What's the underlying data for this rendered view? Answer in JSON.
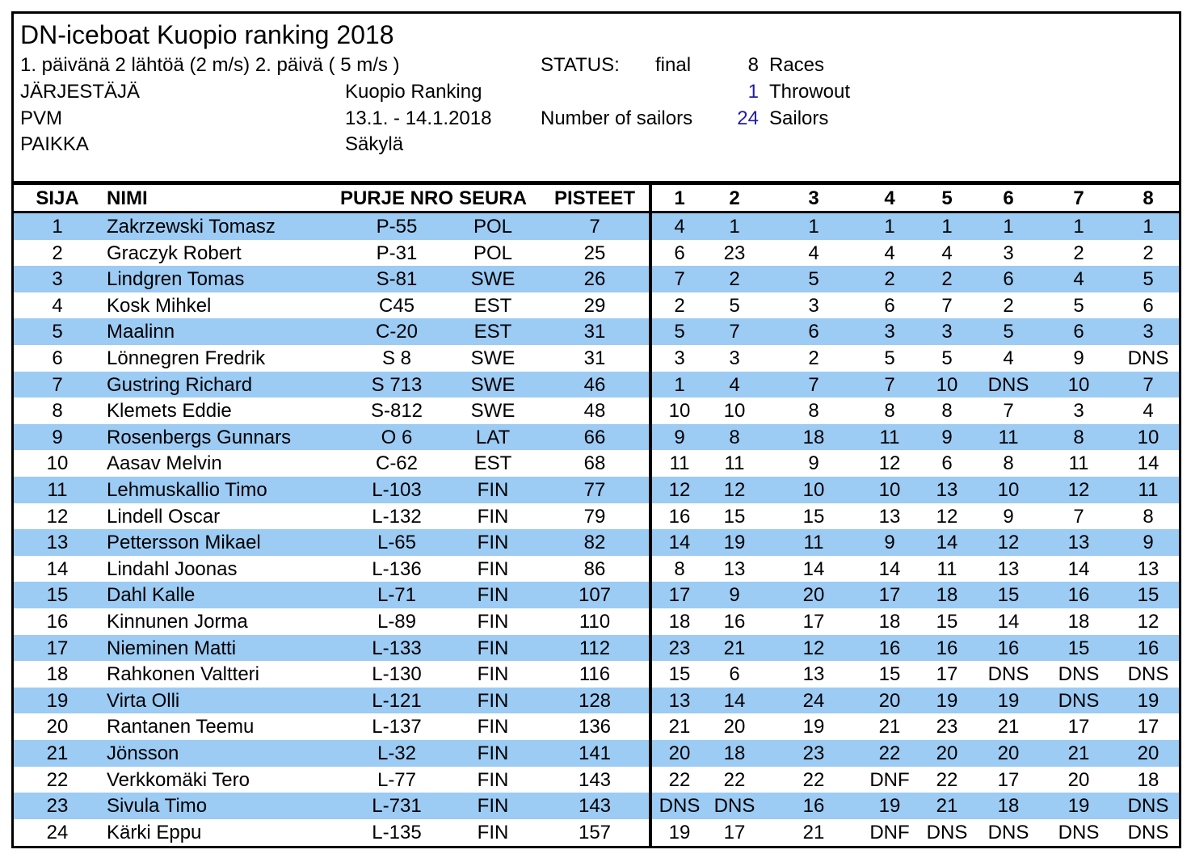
{
  "header": {
    "title": "DN-iceboat Kuopio ranking 2018",
    "subtitle": "1. päivänä 2 lähtöä (2 m/s) 2. päivä ( 5 m/s )",
    "status_label": "STATUS:",
    "status_value": "final",
    "races_count": "8",
    "races_label": "Races",
    "organizer_label": "JÄRJESTÄJÄ",
    "organizer_value": "Kuopio Ranking",
    "throwout_count": "1",
    "throwout_label": "Throwout",
    "date_label": "PVM",
    "date_value": "13.1. - 14.1.2018",
    "sailors_label": "Number of sailors",
    "sailors_count": "24",
    "sailors_unit": "Sailors",
    "place_label": "PAIKKA",
    "place_value": "Säkylä"
  },
  "columns": {
    "rank": "SIJA",
    "name": "NIMI",
    "sail": "PURJE NRO",
    "club": "SEURA",
    "points": "PISTEET",
    "races": [
      "1",
      "2",
      "3",
      "4",
      "5",
      "6",
      "7",
      "8"
    ]
  },
  "colors": {
    "row_shade": "#9ccbf4",
    "number_accent": "#1f1f9e"
  },
  "rows": [
    {
      "rank": "1",
      "name": "Zakrzewski Tomasz",
      "sail": "P-55",
      "club": "POL",
      "points": "7",
      "races": [
        "4",
        "1",
        "1",
        "1",
        "1",
        "1",
        "1",
        "1"
      ]
    },
    {
      "rank": "2",
      "name": "Graczyk Robert",
      "sail": "P-31",
      "club": "POL",
      "points": "25",
      "races": [
        "6",
        "23",
        "4",
        "4",
        "4",
        "3",
        "2",
        "2"
      ]
    },
    {
      "rank": "3",
      "name": "Lindgren Tomas",
      "sail": "S-81",
      "club": "SWE",
      "points": "26",
      "races": [
        "7",
        "2",
        "5",
        "2",
        "2",
        "6",
        "4",
        "5"
      ]
    },
    {
      "rank": "4",
      "name": "Kosk Mihkel",
      "sail": "C45",
      "club": "EST",
      "points": "29",
      "races": [
        "2",
        "5",
        "3",
        "6",
        "7",
        "2",
        "5",
        "6"
      ]
    },
    {
      "rank": "5",
      "name": "Maalinn",
      "sail": "C-20",
      "club": "EST",
      "points": "31",
      "races": [
        "5",
        "7",
        "6",
        "3",
        "3",
        "5",
        "6",
        "3"
      ]
    },
    {
      "rank": "6",
      "name": "Lönnegren Fredrik",
      "sail": "S 8",
      "club": "SWE",
      "points": "31",
      "races": [
        "3",
        "3",
        "2",
        "5",
        "5",
        "4",
        "9",
        "DNS"
      ]
    },
    {
      "rank": "7",
      "name": "Gustring Richard",
      "sail": "S 713",
      "club": "SWE",
      "points": "46",
      "races": [
        "1",
        "4",
        "7",
        "7",
        "10",
        "DNS",
        "10",
        "7"
      ]
    },
    {
      "rank": "8",
      "name": "Klemets Eddie",
      "sail": "S-812",
      "club": "SWE",
      "points": "48",
      "races": [
        "10",
        "10",
        "8",
        "8",
        "8",
        "7",
        "3",
        "4"
      ]
    },
    {
      "rank": "9",
      "name": "Rosenbergs Gunnars",
      "sail": "O 6",
      "club": "LAT",
      "points": "66",
      "races": [
        "9",
        "8",
        "18",
        "11",
        "9",
        "11",
        "8",
        "10"
      ]
    },
    {
      "rank": "10",
      "name": "Aasav Melvin",
      "sail": "C-62",
      "club": "EST",
      "points": "68",
      "races": [
        "11",
        "11",
        "9",
        "12",
        "6",
        "8",
        "11",
        "14"
      ]
    },
    {
      "rank": "11",
      "name": "Lehmuskallio Timo",
      "sail": "L-103",
      "club": "FIN",
      "points": "77",
      "races": [
        "12",
        "12",
        "10",
        "10",
        "13",
        "10",
        "12",
        "11"
      ]
    },
    {
      "rank": "12",
      "name": "Lindell Oscar",
      "sail": "L-132",
      "club": "FIN",
      "points": "79",
      "races": [
        "16",
        "15",
        "15",
        "13",
        "12",
        "9",
        "7",
        "8"
      ]
    },
    {
      "rank": "13",
      "name": "Pettersson Mikael",
      "sail": "L-65",
      "club": "FIN",
      "points": "82",
      "races": [
        "14",
        "19",
        "11",
        "9",
        "14",
        "12",
        "13",
        "9"
      ]
    },
    {
      "rank": "14",
      "name": "Lindahl Joonas",
      "sail": "L-136",
      "club": "FIN",
      "points": "86",
      "races": [
        "8",
        "13",
        "14",
        "14",
        "11",
        "13",
        "14",
        "13"
      ]
    },
    {
      "rank": "15",
      "name": "Dahl Kalle",
      "sail": "L-71",
      "club": "FIN",
      "points": "107",
      "races": [
        "17",
        "9",
        "20",
        "17",
        "18",
        "15",
        "16",
        "15"
      ]
    },
    {
      "rank": "16",
      "name": "Kinnunen Jorma",
      "sail": "L-89",
      "club": "FIN",
      "points": "110",
      "races": [
        "18",
        "16",
        "17",
        "18",
        "15",
        "14",
        "18",
        "12"
      ]
    },
    {
      "rank": "17",
      "name": "Nieminen Matti",
      "sail": "L-133",
      "club": "FIN",
      "points": "112",
      "races": [
        "23",
        "21",
        "12",
        "16",
        "16",
        "16",
        "15",
        "16"
      ]
    },
    {
      "rank": "18",
      "name": "Rahkonen Valtteri",
      "sail": "L-130",
      "club": "FIN",
      "points": "116",
      "races": [
        "15",
        "6",
        "13",
        "15",
        "17",
        "DNS",
        "DNS",
        "DNS"
      ]
    },
    {
      "rank": "19",
      "name": "Virta Olli",
      "sail": "L-121",
      "club": "FIN",
      "points": "128",
      "races": [
        "13",
        "14",
        "24",
        "20",
        "19",
        "19",
        "DNS",
        "19"
      ]
    },
    {
      "rank": "20",
      "name": "Rantanen Teemu",
      "sail": "L-137",
      "club": "FIN",
      "points": "136",
      "races": [
        "21",
        "20",
        "19",
        "21",
        "23",
        "21",
        "17",
        "17"
      ]
    },
    {
      "rank": "21",
      "name": "Jönsson",
      "sail": "L-32",
      "club": "FIN",
      "points": "141",
      "races": [
        "20",
        "18",
        "23",
        "22",
        "20",
        "20",
        "21",
        "20"
      ]
    },
    {
      "rank": "22",
      "name": "Verkkomäki Tero",
      "sail": "L-77",
      "club": "FIN",
      "points": "143",
      "races": [
        "22",
        "22",
        "22",
        "DNF",
        "22",
        "17",
        "20",
        "18"
      ]
    },
    {
      "rank": "23",
      "name": "Sivula Timo",
      "sail": "L-731",
      "club": "FIN",
      "points": "143",
      "races": [
        "DNS",
        "DNS",
        "16",
        "19",
        "21",
        "18",
        "19",
        "DNS"
      ]
    },
    {
      "rank": "24",
      "name": "Kärki Eppu",
      "sail": "L-135",
      "club": "FIN",
      "points": "157",
      "races": [
        "19",
        "17",
        "21",
        "DNF",
        "DNS",
        "DNS",
        "DNS",
        "DNS"
      ]
    }
  ]
}
